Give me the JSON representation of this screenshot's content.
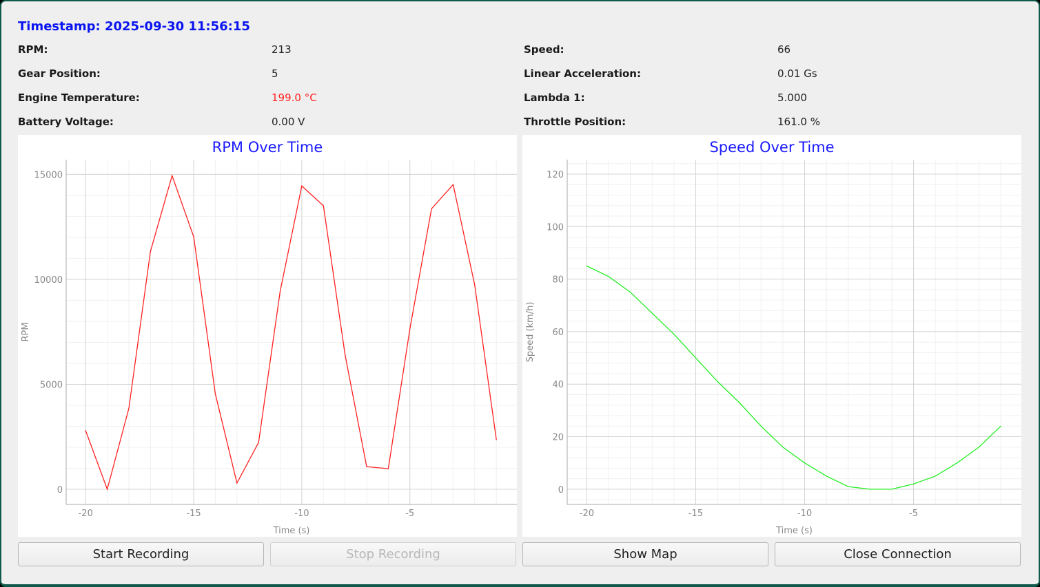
{
  "timestamp": "Timestamp: 2025-09-30 11:56:15",
  "fields_left": [
    {
      "label": "RPM:",
      "value": "213"
    },
    {
      "label": "Gear Position:",
      "value": "5"
    },
    {
      "label": "Engine Temperature:",
      "value": "199.0 °C"
    },
    {
      "label": "Battery Voltage:",
      "value": "0.00 V"
    }
  ],
  "fields_right": [
    {
      "label": "Speed:",
      "value": "66"
    },
    {
      "label": "Linear Acceleration:",
      "value": "0.01 Gs"
    },
    {
      "label": "Lambda 1:",
      "value": "5.000"
    },
    {
      "label": "Throttle Position:",
      "value": "161.0 %"
    }
  ],
  "colors": {
    "timestamp": "#0a14f0",
    "warning": "#ff2020",
    "rpm_line": "#ff2020",
    "speed_line": "#22ee22",
    "title": "#1a1aff"
  },
  "buttons": {
    "start": "Start Recording",
    "stop": "Stop Recording",
    "map": "Show Map",
    "close": "Close Connection"
  },
  "chart_data": [
    {
      "type": "line",
      "title": "RPM Over Time",
      "xlabel": "Time (s)",
      "ylabel": "RPM",
      "x": [
        -20,
        -19,
        -18,
        -17,
        -16,
        -15,
        -14,
        -13,
        -12,
        -11,
        -10,
        -9,
        -8,
        -7,
        -6,
        -5,
        -4,
        -3,
        -2,
        -1
      ],
      "values": [
        2800,
        0,
        3860,
        11330,
        14940,
        12020,
        4550,
        300,
        2230,
        9430,
        14450,
        13500,
        6420,
        1080,
        980,
        7630,
        13360,
        14510,
        9730,
        2360
      ],
      "xlim": [
        -20.9,
        -0.05
      ],
      "ylim": [
        -720,
        15700
      ],
      "xticks": [
        -20,
        -15,
        -10,
        -5
      ],
      "yticks": [
        0,
        5000,
        10000,
        15000
      ],
      "grid": true
    },
    {
      "type": "line",
      "title": "Speed Over Time",
      "xlabel": "Time (s)",
      "ylabel": "Speed (km/h)",
      "x": [
        -20,
        -19,
        -18,
        -17,
        -16,
        -15,
        -14,
        -13,
        -12,
        -11,
        -10,
        -9,
        -8,
        -7,
        -6,
        -5,
        -4,
        -3,
        -2,
        -1
      ],
      "values": [
        85,
        81,
        75,
        67,
        59,
        50,
        41,
        33,
        24,
        16,
        10,
        5,
        1,
        0,
        0,
        2,
        5,
        10,
        16,
        24
      ],
      "xlim": [
        -20.9,
        -0.05
      ],
      "ylim": [
        -5.8,
        125.5
      ],
      "xticks": [
        -20,
        -15,
        -10,
        -5
      ],
      "yticks": [
        0,
        20,
        40,
        60,
        80,
        100,
        120
      ],
      "grid": true
    }
  ]
}
